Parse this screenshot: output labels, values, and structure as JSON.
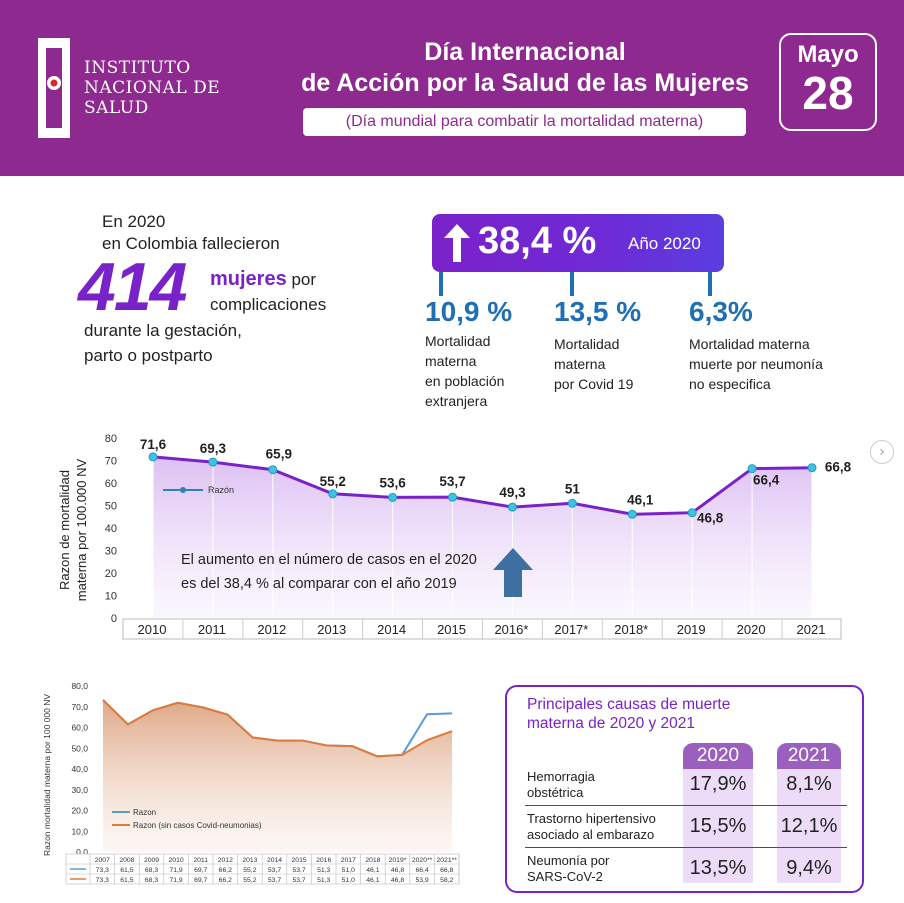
{
  "header": {
    "logo_lines": [
      "INSTITUTO",
      "NACIONAL DE",
      "SALUD"
    ],
    "title_line1": "Día Internacional",
    "title_line2": "de Acción por la Salud de las Mujeres",
    "subtitle": "(Día mundial para combatir la mortalidad materna)",
    "date_month": "Mayo",
    "date_day": "28",
    "colors": {
      "background": "#8e2a8f",
      "text": "#ffffff"
    }
  },
  "summary": {
    "intro_line1": "En 2020",
    "intro_line2": "en Colombia fallecieron",
    "count": "414",
    "word": "mujeres",
    "after_word": "por",
    "line3": "complicaciones",
    "line4": "durante la gestación,",
    "line5": "parto o postparto",
    "accent_color": "#7a22c9"
  },
  "increase": {
    "value": "38,4 %",
    "year_label": "Año 2020",
    "icon": "arrow-up-icon"
  },
  "breakdown": [
    {
      "pct": "10,9 %",
      "desc": [
        "Mortalidad",
        "materna",
        "en población",
        "extranjera"
      ]
    },
    {
      "pct": "13,5 %",
      "desc": [
        "Mortalidad",
        "materna",
        "por Covid 19"
      ]
    },
    {
      "pct": "6,3%",
      "desc": [
        "Mortalidad materna",
        "muerte por neumonía",
        "no especifica"
      ]
    }
  ],
  "chart_data": [
    {
      "type": "line",
      "ylabel_line1": "Razon de mortalidad",
      "ylabel_line2": "materna por 100.000 NV",
      "categories": [
        "2010",
        "2011",
        "2012",
        "2013",
        "2014",
        "2015",
        "2016*",
        "2017*",
        "2018*",
        "2019",
        "2020",
        "2021"
      ],
      "series": [
        {
          "name": "Razón",
          "values": [
            71.6,
            69.3,
            65.9,
            55.2,
            53.6,
            53.7,
            49.3,
            51,
            46.1,
            46.8,
            66.4,
            66.8
          ],
          "color": "#7a22c9"
        }
      ],
      "data_labels": [
        "71,6",
        "69,3",
        "65,9",
        "55,2",
        "53,6",
        "53,7",
        "49,3",
        "51",
        "46,1",
        "46,8",
        "66,4",
        "66,8"
      ],
      "yticks": [
        "0",
        "10",
        "20",
        "30",
        "40",
        "50",
        "60",
        "70",
        "80"
      ],
      "ylim": [
        0,
        80
      ],
      "legend_position": "top-left",
      "annotation_line1": "El aumento en el número de casos en el 2020",
      "annotation_line2": "es del 38,4 % al comparar con el año 2019",
      "annotation_icon": "arrow-up-icon",
      "grid": false
    },
    {
      "type": "area",
      "ylabel": "Razon mortalidad materna por 100 000 NV",
      "categories": [
        "2007",
        "2008",
        "2009",
        "2010",
        "2011",
        "2012",
        "2013",
        "2014",
        "2015",
        "2016",
        "2017",
        "2018",
        "2019*",
        "2020**",
        "2021**"
      ],
      "series": [
        {
          "name": "Razon",
          "values": [
            73.3,
            61.5,
            68.3,
            71.9,
            69.7,
            66.2,
            55.2,
            53.7,
            53.7,
            51.3,
            51.0,
            46.1,
            46.8,
            66.4,
            66.8
          ],
          "labels": [
            "73,3",
            "61,5",
            "68,3",
            "71,9",
            "69,7",
            "66,2",
            "55,2",
            "53,7",
            "53,7",
            "51,3",
            "51,0",
            "46,1",
            "46,8",
            "66,4",
            "66,8"
          ],
          "color": "#5b9bd5"
        },
        {
          "name": "Razon (sin casos Covid-neumonias)",
          "values": [
            73.3,
            61.5,
            68.3,
            71.9,
            69.7,
            66.2,
            55.2,
            53.7,
            53.7,
            51.3,
            51.0,
            46.1,
            46.8,
            53.9,
            58.2
          ],
          "labels": [
            "73,3",
            "61,5",
            "68,3",
            "71,9",
            "69,7",
            "66,2",
            "55,2",
            "53,7",
            "53,7",
            "51,3",
            "51,0",
            "46,1",
            "46,8",
            "53,9",
            "58,2"
          ],
          "color": "#e07b39"
        }
      ],
      "yticks": [
        "0,0",
        "10,0",
        "20,0",
        "30,0",
        "40,0",
        "50,0",
        "60,0",
        "70,0",
        "80,0"
      ],
      "ylim": [
        0,
        80
      ],
      "legend_position": "bottom-left",
      "grid": false
    }
  ],
  "causes": {
    "title_line1": "Principales causas de muerte",
    "title_line2": "materna de 2020 y 2021",
    "years": [
      "2020",
      "2021"
    ],
    "rows": [
      {
        "label": [
          "Hemorragia",
          "obstétrica"
        ],
        "values": [
          "17,9%",
          "8,1%"
        ]
      },
      {
        "label": [
          "Trastorno hipertensivo",
          "asociado al embarazo"
        ],
        "values": [
          "15,5%",
          "12,1%"
        ]
      },
      {
        "label": [
          "Neumonía por",
          "SARS-CoV-2"
        ],
        "values": [
          "13,5%",
          "9,4%"
        ]
      }
    ]
  }
}
